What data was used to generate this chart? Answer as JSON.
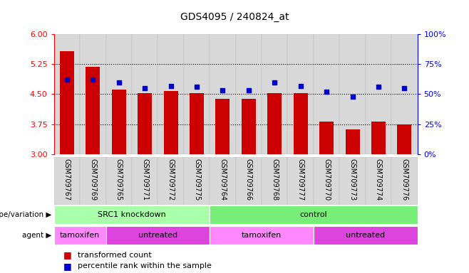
{
  "title": "GDS4095 / 240824_at",
  "samples": [
    "GSM709767",
    "GSM709769",
    "GSM709765",
    "GSM709771",
    "GSM709772",
    "GSM709775",
    "GSM709764",
    "GSM709766",
    "GSM709768",
    "GSM709777",
    "GSM709770",
    "GSM709773",
    "GSM709774",
    "GSM709776"
  ],
  "bar_values": [
    5.57,
    5.18,
    4.62,
    4.52,
    4.58,
    4.53,
    4.38,
    4.38,
    4.52,
    4.52,
    3.82,
    3.62,
    3.82,
    3.74
  ],
  "dot_values": [
    62,
    62,
    60,
    55,
    57,
    56,
    53,
    53,
    60,
    57,
    52,
    48,
    56,
    55
  ],
  "bar_color": "#cc0000",
  "dot_color": "#0000cc",
  "ylim_left": [
    3.0,
    6.0
  ],
  "ylim_right": [
    0,
    100
  ],
  "yticks_left": [
    3.0,
    3.75,
    4.5,
    5.25,
    6.0
  ],
  "yticks_right": [
    0,
    25,
    50,
    75,
    100
  ],
  "ytick_labels_right": [
    "0%",
    "25%",
    "50%",
    "75%",
    "100%"
  ],
  "grid_values": [
    3.75,
    4.5,
    5.25
  ],
  "genotype_groups": [
    {
      "label": "SRC1 knockdown",
      "start": 0,
      "end": 6,
      "color": "#aaffaa"
    },
    {
      "label": "control",
      "start": 6,
      "end": 14,
      "color": "#77ee77"
    }
  ],
  "agent_groups": [
    {
      "label": "tamoxifen",
      "start": 0,
      "end": 2,
      "color": "#ff88ff"
    },
    {
      "label": "untreated",
      "start": 2,
      "end": 6,
      "color": "#dd44dd"
    },
    {
      "label": "tamoxifen",
      "start": 6,
      "end": 10,
      "color": "#ff88ff"
    },
    {
      "label": "untreated",
      "start": 10,
      "end": 14,
      "color": "#dd44dd"
    }
  ],
  "legend_items": [
    {
      "color": "#cc0000",
      "label": "transformed count"
    },
    {
      "color": "#0000cc",
      "label": "percentile rank within the sample"
    }
  ],
  "genotype_label": "genotype/variation",
  "agent_label": "agent",
  "bar_width": 0.55,
  "base_value": 3.0,
  "col_bg_color": "#d8d8d8",
  "col_border_color": "#bbbbbb"
}
